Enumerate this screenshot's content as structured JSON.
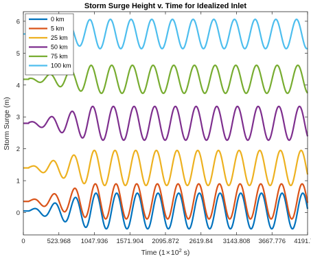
{
  "chart_data": {
    "type": "line",
    "title": "Storm Surge Height v. Time for Idealized Inlet",
    "xlabel_prefix": "Time (1",
    "xlabel_times": "×",
    "xlabel_base": "10",
    "xlabel_exp": "2",
    "xlabel_suffix": " s)",
    "ylabel": "Storm Surge (m)",
    "xlim": [
      0,
      4191.744
    ],
    "ylim": [
      -0.7,
      6.3
    ],
    "xticks": [
      0,
      523.968,
      1047.936,
      1571.904,
      2095.872,
      2619.84,
      3143.808,
      3667.776,
      4191.744
    ],
    "xtick_labels": [
      "0",
      "523.968",
      "1047.936",
      "1571.904",
      "2095.872",
      "2619.84",
      "3143.808",
      "3667.776",
      "4191.744"
    ],
    "yticks": [
      0,
      1,
      2,
      3,
      4,
      5,
      6
    ],
    "ytick_labels": [
      "0",
      "1",
      "2",
      "3",
      "4",
      "5",
      "6"
    ],
    "grid": false,
    "legend_location": "top-left",
    "wave": {
      "period": 305,
      "flat_until": 80,
      "ramp_end": 1000,
      "start_at_ramp": 0.05
    },
    "series": [
      {
        "name": "0 km",
        "color": "#0072BD",
        "baseline": 0.05,
        "amplitude": 0.56,
        "phase": 0.0
      },
      {
        "name": "5 km",
        "color": "#D95319",
        "baseline": 0.35,
        "amplitude": 0.55,
        "phase": 0.2
      },
      {
        "name": "25 km",
        "color": "#EDB120",
        "baseline": 1.4,
        "amplitude": 0.55,
        "phase": 0.5
      },
      {
        "name": "50 km",
        "color": "#7E2F8E",
        "baseline": 2.8,
        "amplitude": 0.53,
        "phase": 1.0
      },
      {
        "name": "75 km",
        "color": "#77AC30",
        "baseline": 4.18,
        "amplitude": 0.44,
        "phase": 1.5
      },
      {
        "name": "100 km",
        "color": "#4DBEEE",
        "baseline": 5.6,
        "amplitude": 0.46,
        "phase": 1.9
      }
    ]
  }
}
